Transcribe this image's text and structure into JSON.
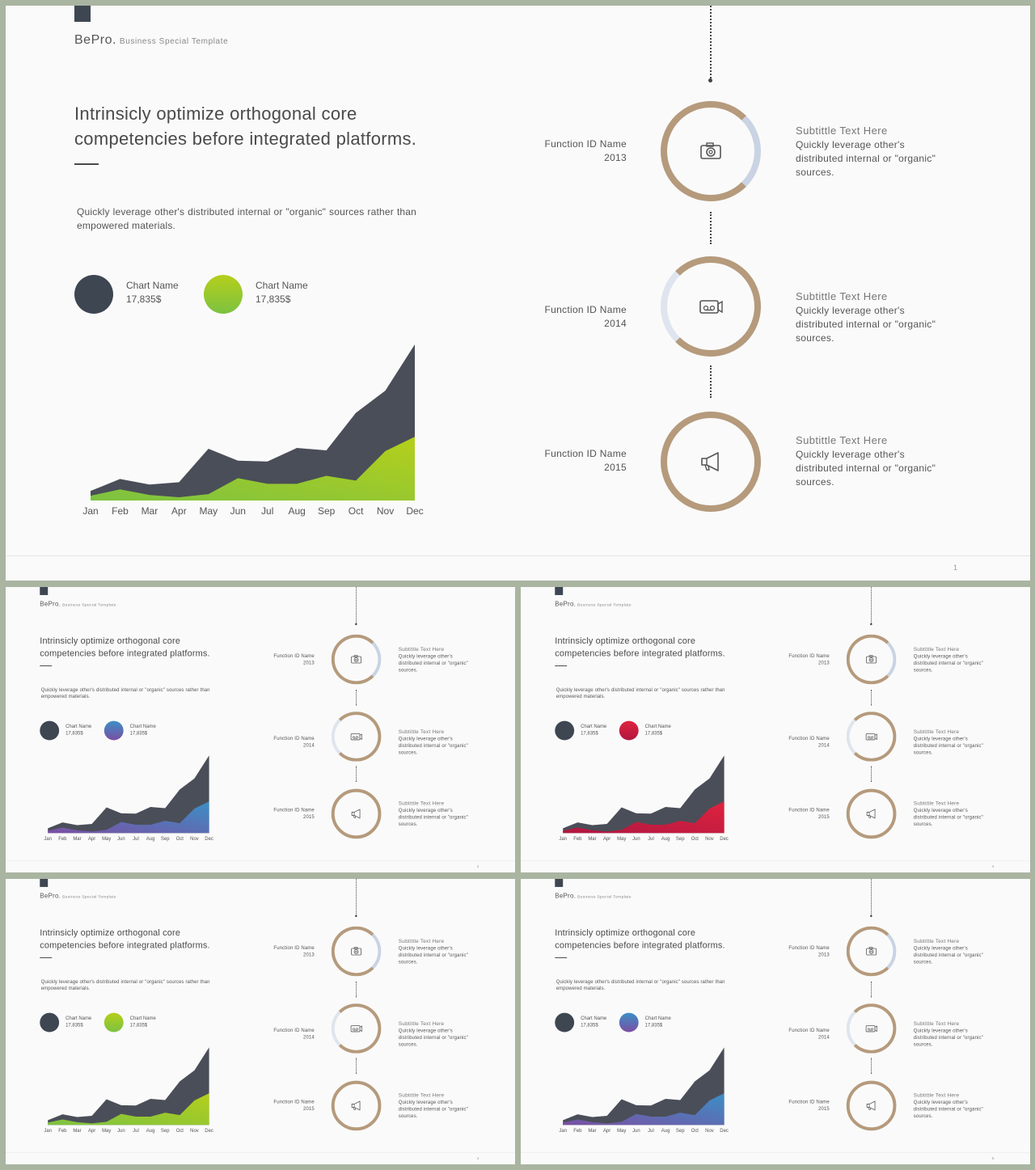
{
  "brand": {
    "name": "BePro.",
    "tagline": "Business  Special  Template"
  },
  "headline": "Intrinsicly optimize orthogonal core competencies before integrated platforms.",
  "description": "Quickly leverage other's distributed internal or \"organic\" sources rather than empowered materials.",
  "legend": [
    {
      "name": "Chart  Name",
      "value": "17,835$"
    },
    {
      "name": "Chart  Name",
      "value": "17,835$"
    }
  ],
  "timeline": [
    {
      "function": "Function  ID  Name",
      "year": "2013",
      "subtitle": "Subtittle  Text  Here",
      "body": "Quickly leverage other's distributed internal or \"organic\" sources.",
      "icon": "camera-icon"
    },
    {
      "function": "Function  ID  Name",
      "year": "2014",
      "subtitle": "Subtittle  Text  Here",
      "body": "Quickly leverage other's distributed internal or \"organic\" sources.",
      "icon": "video-camera-icon"
    },
    {
      "function": "Function  ID  Name",
      "year": "2015",
      "subtitle": "Subtittle  Text  Here",
      "body": "Quickly leverage other's distributed internal or \"organic\" sources.",
      "icon": "megaphone-icon"
    }
  ],
  "slides": [
    {
      "page": "1",
      "accent": "green",
      "colors": [
        "#7cc241",
        "#b5cf1b"
      ]
    },
    {
      "page": "2",
      "accent": "purple-blue",
      "colors": [
        "#7b4fa3",
        "#3b8fc6"
      ]
    },
    {
      "page": "3",
      "accent": "red",
      "colors": [
        "#b01740",
        "#e0233f"
      ]
    },
    {
      "page": "4",
      "accent": "green",
      "colors": [
        "#7cc241",
        "#b5cf1b"
      ]
    },
    {
      "page": "5",
      "accent": "purple-blue",
      "colors": [
        "#7b4fa3",
        "#3b8fc6"
      ]
    }
  ],
  "colors": {
    "dark_series": "#4a4e58",
    "ring": "#b59a7c",
    "accent_blue": "#48b1e6"
  },
  "chart_data": {
    "type": "area",
    "categories": [
      "Jan",
      "Feb",
      "Mar",
      "Apr",
      "May",
      "Jun",
      "Jul",
      "Aug",
      "Sep",
      "Oct",
      "Nov",
      "Dec"
    ],
    "series": [
      {
        "values": [
          12,
          27,
          20,
          23,
          65,
          50,
          49,
          66,
          63,
          110,
          138,
          196
        ]
      },
      {
        "values": [
          6,
          14,
          7,
          4,
          8,
          28,
          21,
          21,
          31,
          25,
          62,
          80
        ]
      }
    ],
    "ylim": [
      0,
      200
    ]
  }
}
